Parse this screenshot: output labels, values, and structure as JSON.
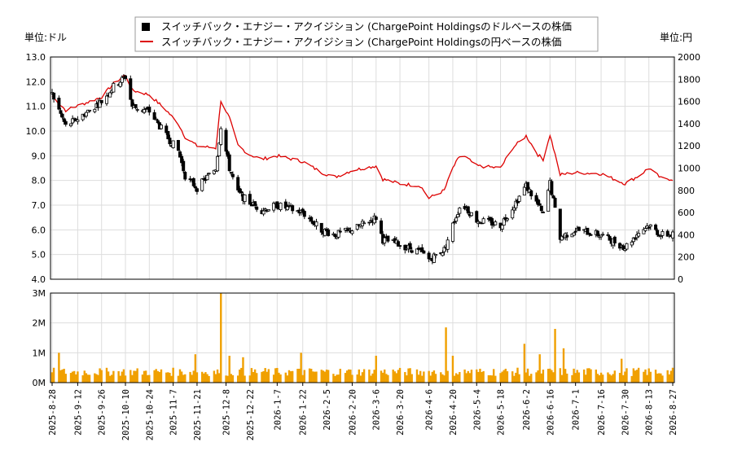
{
  "legend": {
    "usd_label": "スイッチバック・エナジー・アクイジション (ChargePoint Holdingsのドルベースの株価",
    "jpy_label": "スイッチバック・エナジー・アクイジション (ChargePoint Holdingsの円ベースの株価"
  },
  "left_unit": "単位:ドル",
  "right_unit": "単位:円",
  "colors": {
    "candle": "#000000",
    "jpy_line": "#dd0000",
    "volume_bar": "#f0a000",
    "grid": "#dddddd",
    "axis": "#000000"
  },
  "chart_data": [
    {
      "type": "candlestick+line",
      "title": "",
      "y_left": {
        "label": "単位:ドル",
        "min": 4.0,
        "max": 13.0,
        "ticks": [
          "4.0",
          "5.0",
          "6.0",
          "7.0",
          "8.0",
          "9.0",
          "10.0",
          "11.0",
          "12.0",
          "13.0"
        ]
      },
      "y_right": {
        "label": "単位:円",
        "min": 0,
        "max": 2000,
        "ticks": [
          "0",
          "200",
          "400",
          "600",
          "800",
          "1000",
          "1200",
          "1400",
          "1600",
          "1800",
          "2000"
        ]
      },
      "x_ticks": [
        "2025-8-28",
        "2025-9-12",
        "2025-9-26",
        "2025-10-10",
        "2025-10-24",
        "2025-11-7",
        "2025-11-21",
        "2025-12-8",
        "2025-12-22",
        "2026-1-7",
        "2026-1-22",
        "2026-2-5",
        "2026-2-20",
        "2026-3-6",
        "2026-3-20",
        "2026-4-6",
        "2026-4-20",
        "2026-5-4",
        "2026-5-18",
        "2026-6-2",
        "2026-6-16",
        "2026-7-1",
        "2026-7-16",
        "2026-7-30",
        "2026-8-13",
        "2026-8-27"
      ],
      "usd_close_keypoints": [
        [
          "2025-8-28",
          11.5
        ],
        [
          "2025-9-5",
          10.2
        ],
        [
          "2025-9-12",
          10.5
        ],
        [
          "2025-9-26",
          11.2
        ],
        [
          "2025-10-3",
          11.8
        ],
        [
          "2025-10-10",
          12.2
        ],
        [
          "2025-10-14",
          11.0
        ],
        [
          "2025-10-24",
          10.8
        ],
        [
          "2025-11-3",
          9.8
        ],
        [
          "2025-11-10",
          9.2
        ],
        [
          "2025-11-14",
          8.2
        ],
        [
          "2025-11-21",
          7.7
        ],
        [
          "2025-12-2",
          8.5
        ],
        [
          "2025-12-5",
          10.2
        ],
        [
          "2025-12-10",
          8.5
        ],
        [
          "2025-12-15",
          7.5
        ],
        [
          "2025-12-22",
          7.1
        ],
        [
          "2025-12-29",
          6.8
        ],
        [
          "2026-1-7",
          7.0
        ],
        [
          "2026-1-22",
          6.7
        ],
        [
          "2026-2-2",
          6.0
        ],
        [
          "2026-2-10",
          5.8
        ],
        [
          "2026-2-20",
          6.0
        ],
        [
          "2026-3-6",
          6.5
        ],
        [
          "2026-3-10",
          5.6
        ],
        [
          "2026-3-20",
          5.4
        ],
        [
          "2026-4-1",
          5.1
        ],
        [
          "2026-4-6",
          4.8
        ],
        [
          "2026-4-15",
          5.2
        ],
        [
          "2026-4-20",
          6.2
        ],
        [
          "2026-4-25",
          7.1
        ],
        [
          "2026-5-4",
          6.4
        ],
        [
          "2026-5-18",
          6.2
        ],
        [
          "2026-5-25",
          6.9
        ],
        [
          "2026-6-2",
          7.8
        ],
        [
          "2026-6-9",
          7.0
        ],
        [
          "2026-6-12",
          6.6
        ],
        [
          "2026-6-16",
          7.9
        ],
        [
          "2026-6-22",
          5.7
        ],
        [
          "2026-7-1",
          6.0
        ],
        [
          "2026-7-16",
          5.8
        ],
        [
          "2026-7-30",
          5.3
        ],
        [
          "2026-8-7",
          5.9
        ],
        [
          "2026-8-13",
          6.2
        ],
        [
          "2026-8-20",
          5.8
        ],
        [
          "2026-8-27",
          5.8
        ]
      ],
      "jpy_line_keypoints": [
        [
          "2025-8-28",
          1650
        ],
        [
          "2025-9-5",
          1520
        ],
        [
          "2025-9-12",
          1560
        ],
        [
          "2025-9-26",
          1640
        ],
        [
          "2025-10-3",
          1760
        ],
        [
          "2025-10-10",
          1840
        ],
        [
          "2025-10-14",
          1700
        ],
        [
          "2025-10-24",
          1660
        ],
        [
          "2025-11-3",
          1520
        ],
        [
          "2025-11-10",
          1400
        ],
        [
          "2025-11-14",
          1280
        ],
        [
          "2025-11-21",
          1200
        ],
        [
          "2025-12-2",
          1180
        ],
        [
          "2025-12-5",
          1610
        ],
        [
          "2025-12-10",
          1450
        ],
        [
          "2025-12-15",
          1200
        ],
        [
          "2025-12-22",
          1120
        ],
        [
          "2025-12-29",
          1080
        ],
        [
          "2026-1-7",
          1110
        ],
        [
          "2026-1-22",
          1060
        ],
        [
          "2026-2-2",
          960
        ],
        [
          "2026-2-10",
          920
        ],
        [
          "2026-2-20",
          980
        ],
        [
          "2026-3-6",
          1020
        ],
        [
          "2026-3-10",
          900
        ],
        [
          "2026-3-20",
          860
        ],
        [
          "2026-4-1",
          840
        ],
        [
          "2026-4-6",
          730
        ],
        [
          "2026-4-15",
          800
        ],
        [
          "2026-4-20",
          1000
        ],
        [
          "2026-4-25",
          1130
        ],
        [
          "2026-5-4",
          1020
        ],
        [
          "2026-5-18",
          1000
        ],
        [
          "2026-5-25",
          1180
        ],
        [
          "2026-6-2",
          1290
        ],
        [
          "2026-6-9",
          1120
        ],
        [
          "2026-6-12",
          1080
        ],
        [
          "2026-6-16",
          1300
        ],
        [
          "2026-6-22",
          940
        ],
        [
          "2026-7-1",
          960
        ],
        [
          "2026-7-16",
          950
        ],
        [
          "2026-7-30",
          860
        ],
        [
          "2026-8-7",
          930
        ],
        [
          "2026-8-13",
          1000
        ],
        [
          "2026-8-20",
          910
        ],
        [
          "2026-8-27",
          900
        ]
      ]
    },
    {
      "type": "bar",
      "title": "",
      "y": {
        "min": 0,
        "max": 3000000,
        "ticks": [
          "0M",
          "1M",
          "2M",
          "3M"
        ]
      },
      "volume_base": 400000,
      "volume_spikes": [
        [
          "2025-9-1",
          1000000
        ],
        [
          "2025-11-20",
          950000
        ],
        [
          "2025-12-5",
          3000000
        ],
        [
          "2025-12-10",
          900000
        ],
        [
          "2025-12-18",
          850000
        ],
        [
          "2026-1-21",
          1000000
        ],
        [
          "2026-3-6",
          900000
        ],
        [
          "2026-4-16",
          1850000
        ],
        [
          "2026-4-20",
          900000
        ],
        [
          "2026-6-1",
          1300000
        ],
        [
          "2026-6-10",
          950000
        ],
        [
          "2026-6-19",
          1800000
        ],
        [
          "2026-6-24",
          1150000
        ],
        [
          "2026-7-28",
          800000
        ]
      ]
    }
  ]
}
